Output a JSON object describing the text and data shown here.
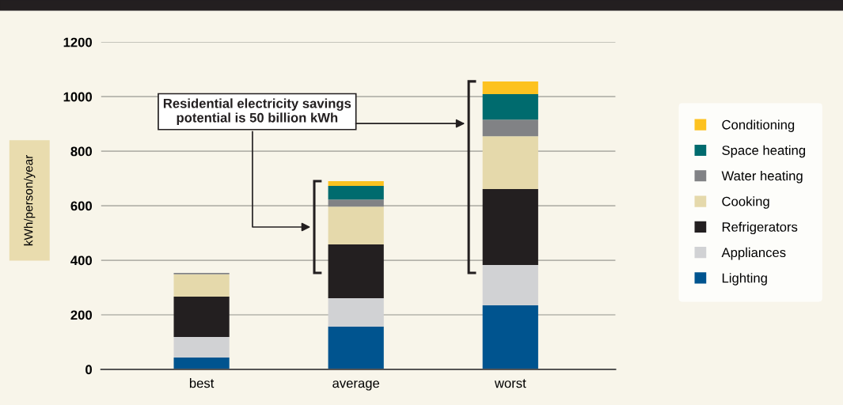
{
  "chart_data": {
    "type": "bar",
    "stacked": true,
    "ylabel": "kWh/person/year",
    "categories": [
      "best",
      "average",
      "worst"
    ],
    "series": [
      {
        "name": "Lighting",
        "color": "#00548f",
        "values": [
          43,
          157,
          235
        ]
      },
      {
        "name": "Appliances",
        "color": "#d1d2d4",
        "values": [
          76,
          104,
          148
        ]
      },
      {
        "name": "Refrigerators",
        "color": "#231f20",
        "values": [
          148,
          197,
          278
        ]
      },
      {
        "name": "Cooking",
        "color": "#e5d9ab",
        "values": [
          82,
          139,
          194
        ]
      },
      {
        "name": "Water heating",
        "color": "#818285",
        "values": [
          5,
          26,
          61
        ]
      },
      {
        "name": "Space heating",
        "color": "#006b6e",
        "values": [
          0,
          50,
          93
        ]
      },
      {
        "name": "Conditioning",
        "color": "#fdc220",
        "values": [
          0,
          17,
          47
        ]
      }
    ],
    "ylim": [
      0,
      1200
    ],
    "yticks": [
      0,
      200,
      400,
      600,
      800,
      1000,
      1200
    ],
    "grid": "y",
    "legend": "right",
    "annotations": [
      "Residential electricity savings\npotential is 50 billion kWh"
    ]
  }
}
